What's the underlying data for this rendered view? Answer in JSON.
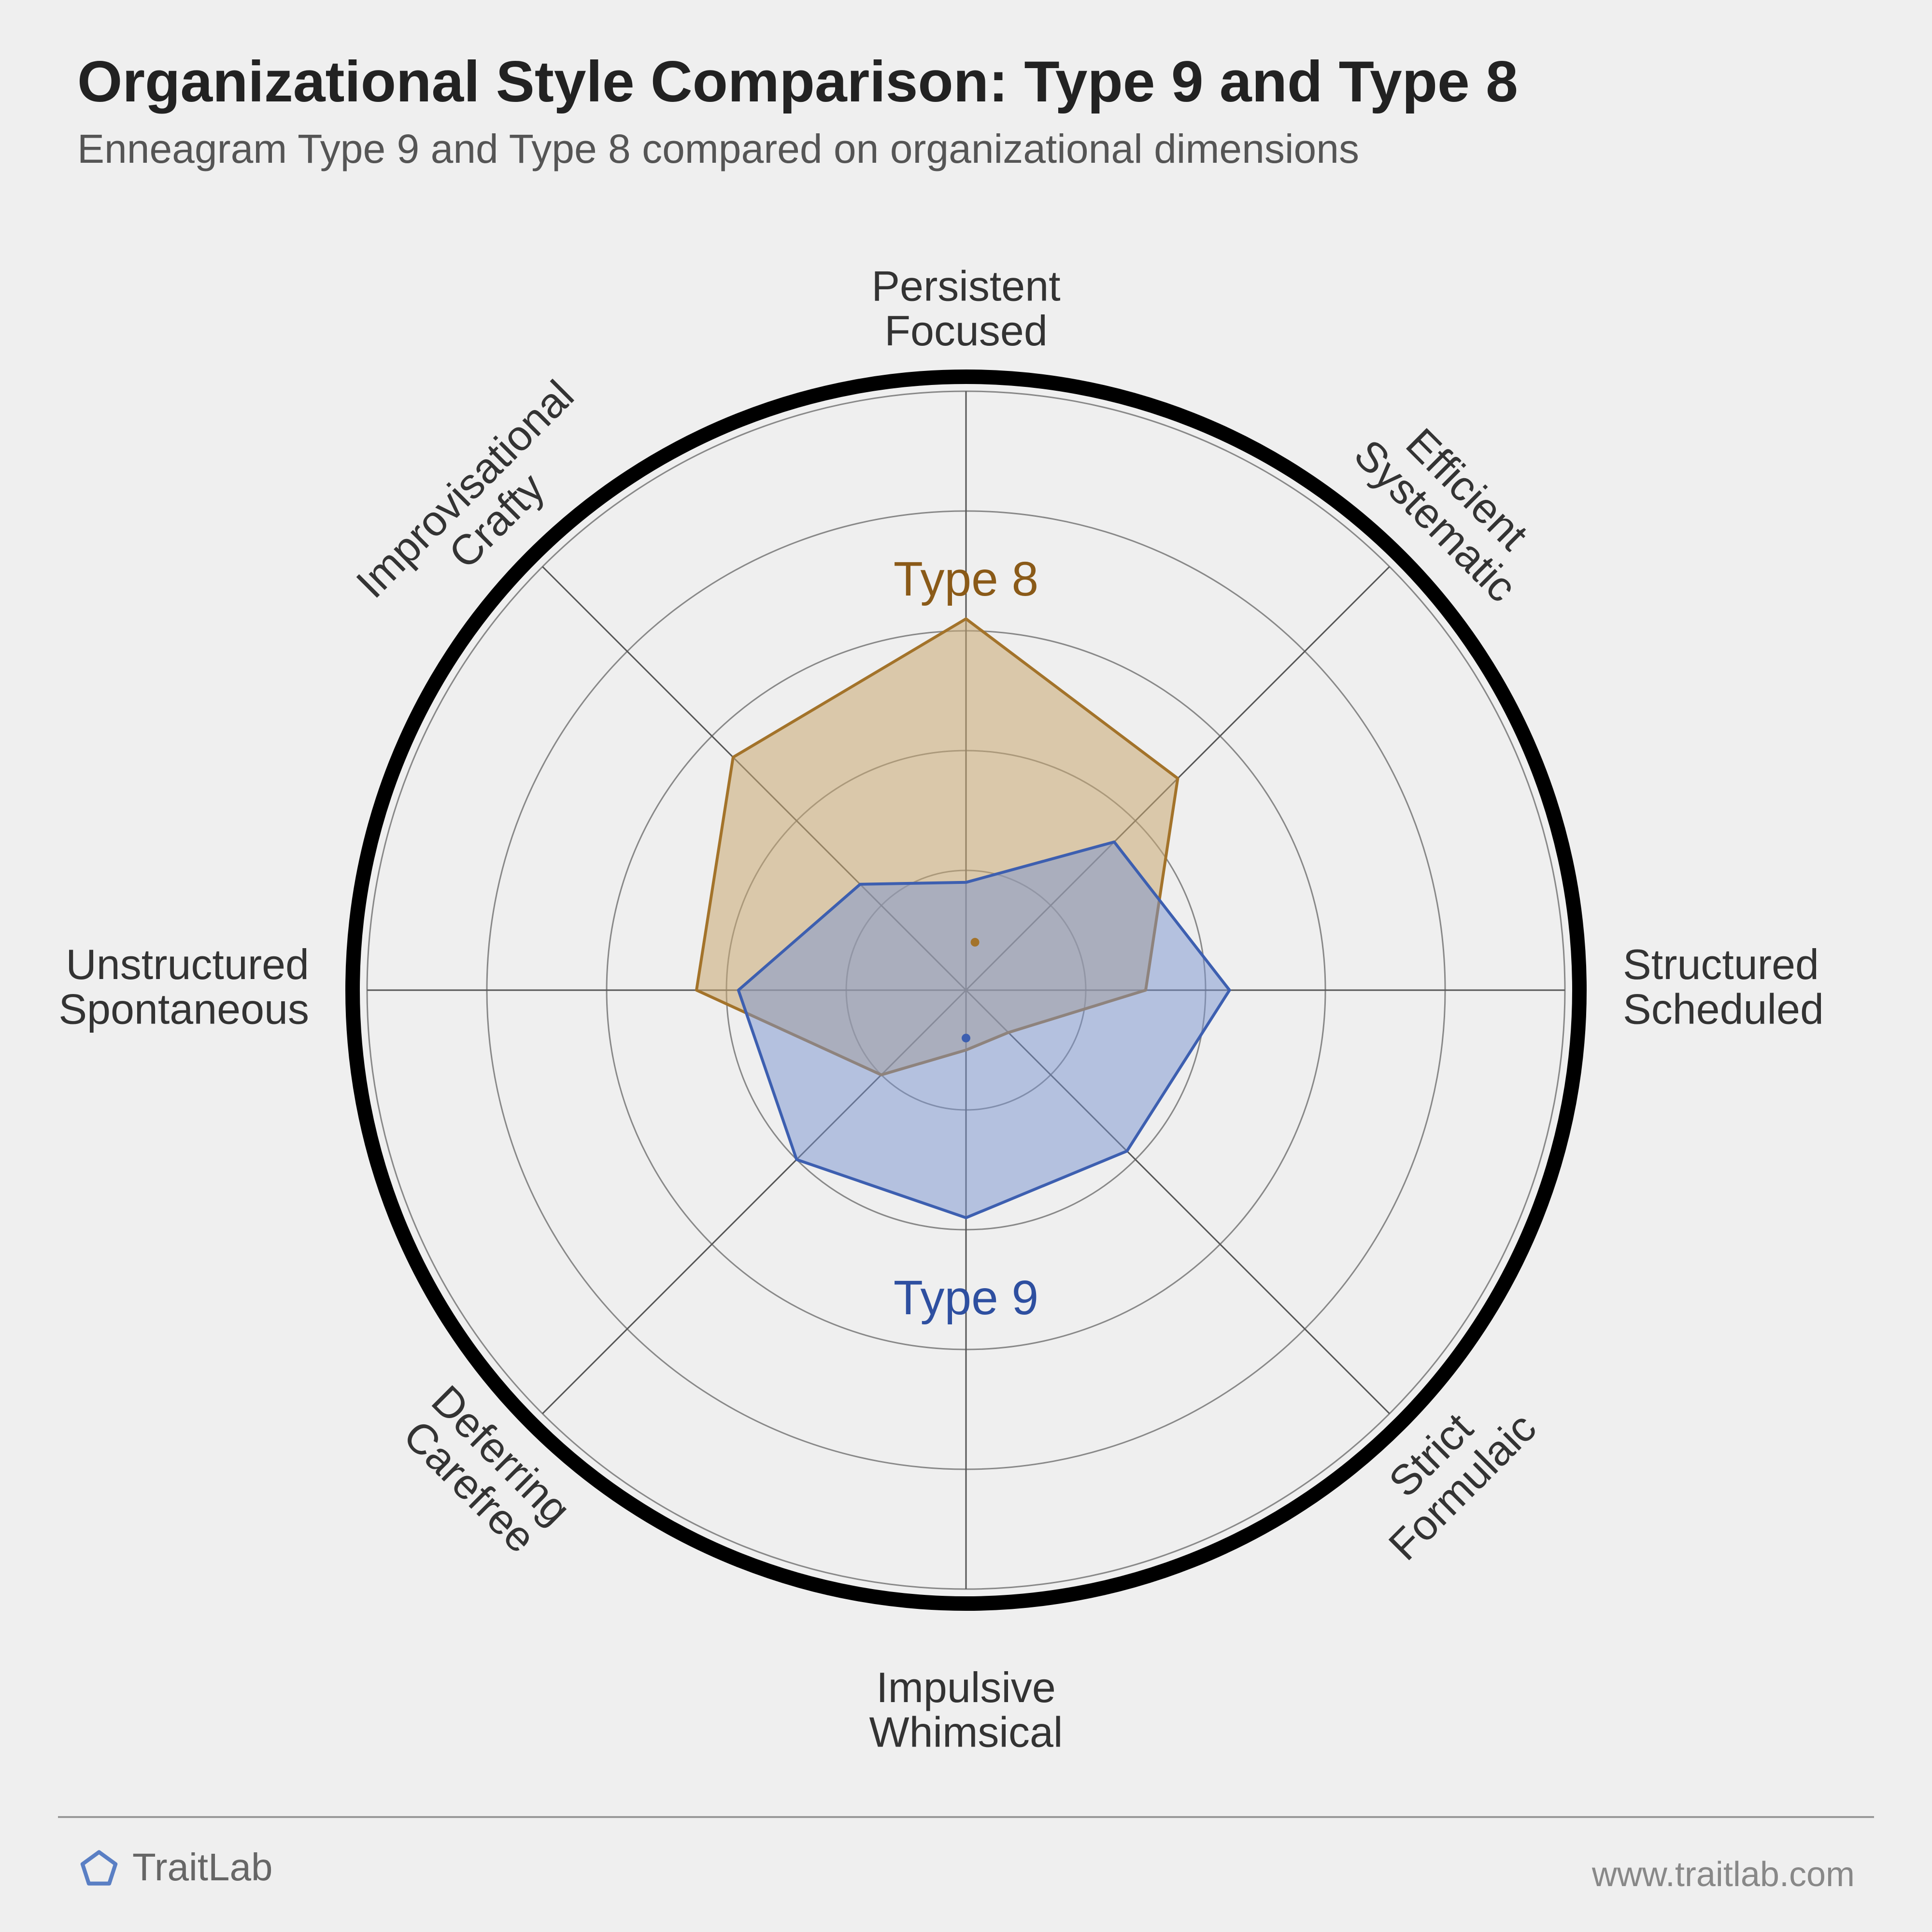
{
  "title": "Organizational Style Comparison: Type 9 and Type 8",
  "subtitle": "Enneagram Type 9 and Type 8 compared on organizational dimensions",
  "footer": {
    "brand": "TraitLab",
    "url": "www.traitlab.com",
    "logo_stroke": "#5a7fc4"
  },
  "chart": {
    "type": "radar",
    "background_color": "#efefef",
    "outer_ring_color": "#000000",
    "outer_ring_width": 30,
    "grid_color": "#666666",
    "ring_color": "#888888",
    "ring_width": 3,
    "spoke_color": "#555555",
    "spoke_width": 3,
    "label_color": "#333333",
    "label_fontsize": 88,
    "series_label_fontsize": 100,
    "grid_levels": 5,
    "axes": [
      {
        "angle_deg": 270,
        "lines": [
          "Persistent",
          "Focused"
        ]
      },
      {
        "angle_deg": 315,
        "lines": [
          "Efficient",
          "Systematic"
        ]
      },
      {
        "angle_deg": 0,
        "lines": [
          "Structured",
          "Scheduled"
        ]
      },
      {
        "angle_deg": 45,
        "lines": [
          "Strict",
          "Formulaic"
        ]
      },
      {
        "angle_deg": 90,
        "lines": [
          "Impulsive",
          "Whimsical"
        ]
      },
      {
        "angle_deg": 135,
        "lines": [
          "Deferring",
          "Carefree"
        ]
      },
      {
        "angle_deg": 180,
        "lines": [
          "Unstructured",
          "Spontaneous"
        ]
      },
      {
        "angle_deg": 225,
        "lines": [
          "Improvisational",
          "Crafty"
        ]
      }
    ],
    "series": [
      {
        "name": "Type 8",
        "label": "Type 8",
        "fill": "#c9a871",
        "fill_opacity": 0.55,
        "stroke": "#a3732a",
        "stroke_width": 6,
        "label_color": "#8a5a18",
        "label_at_angle_deg": 270,
        "label_at_value": 0.68,
        "center_dot_offset": {
          "dx": 0.015,
          "dy": -0.08
        },
        "values": [
          0.62,
          0.5,
          0.3,
          0.1,
          0.1,
          0.2,
          0.45,
          0.55
        ]
      },
      {
        "name": "Type 9",
        "label": "Type 9",
        "fill": "#7a94cf",
        "fill_opacity": 0.5,
        "stroke": "#3d5fb0",
        "stroke_width": 6,
        "label_color": "#2e4fa0",
        "label_at_angle_deg": 90,
        "label_at_value": 0.52,
        "center_dot_offset": {
          "dx": 0.0,
          "dy": 0.08
        },
        "values": [
          0.18,
          0.35,
          0.44,
          0.38,
          0.38,
          0.4,
          0.38,
          0.25
        ]
      }
    ]
  }
}
